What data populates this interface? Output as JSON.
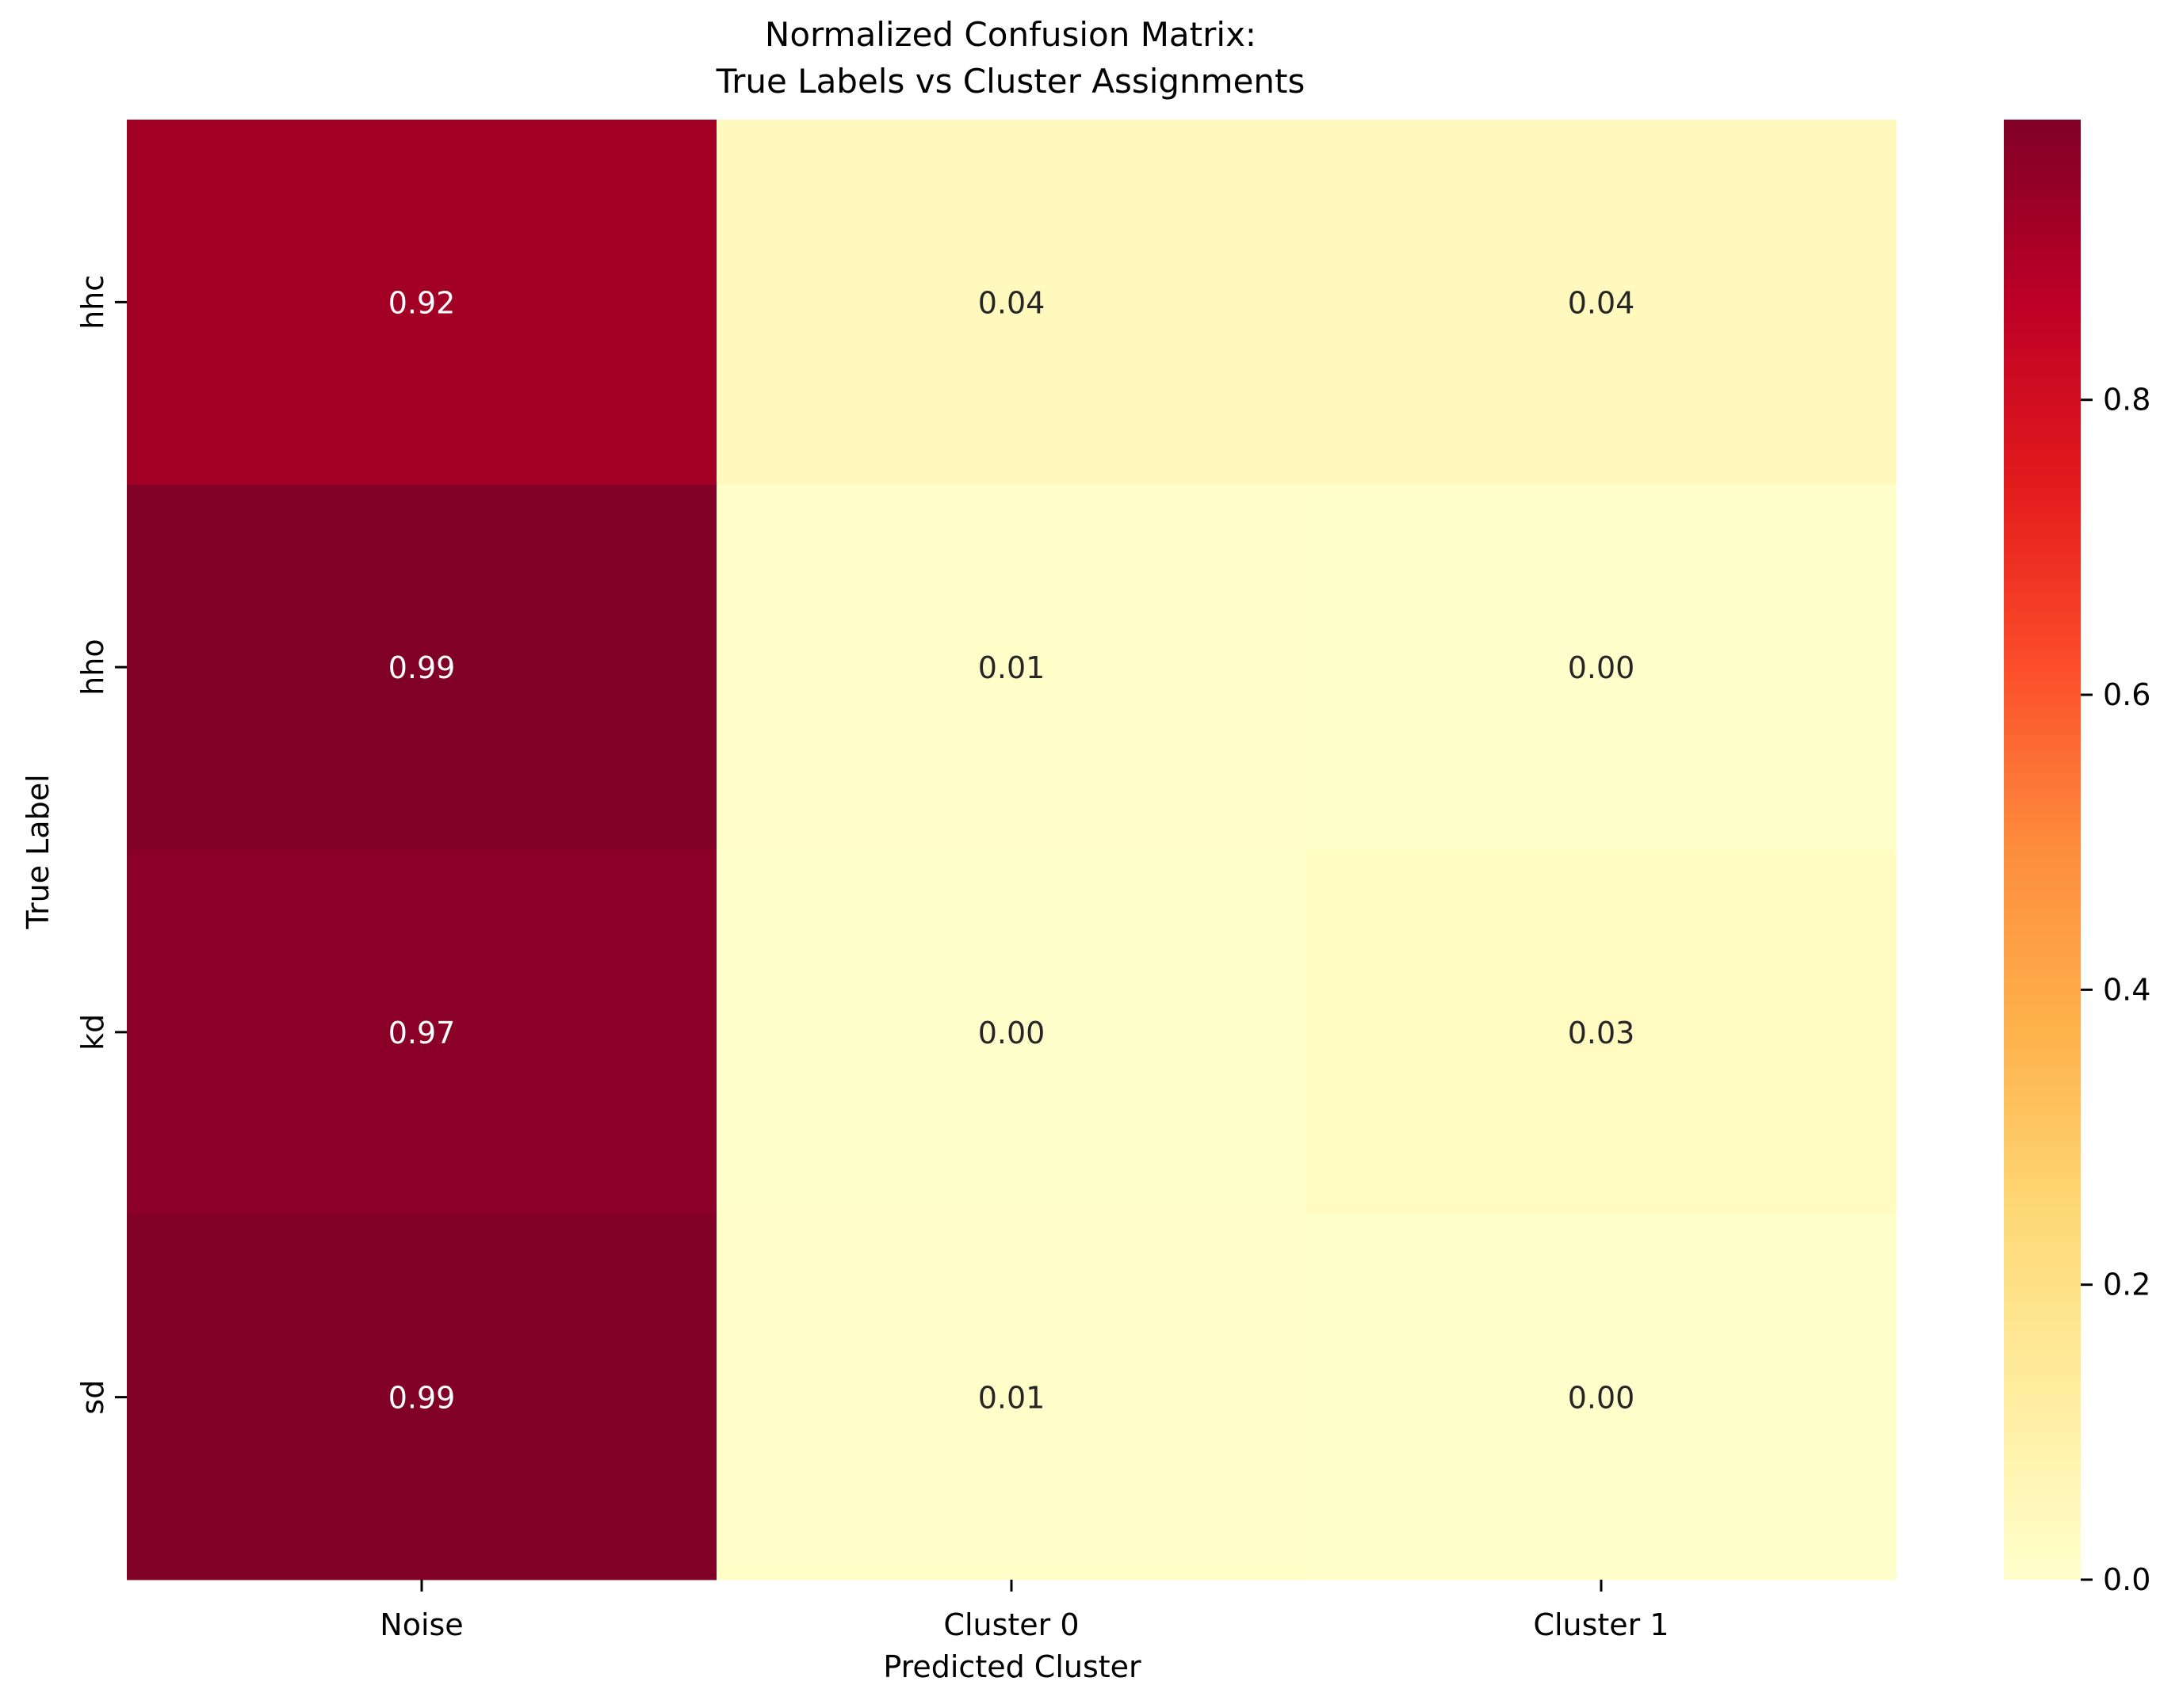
{
  "chart_data": {
    "type": "heatmap",
    "title_lines": [
      "Normalized Confusion Matrix:",
      "True Labels vs Cluster Assignments"
    ],
    "xlabel": "Predicted Cluster",
    "ylabel": "True Label",
    "x_categories": [
      "Noise",
      "Cluster 0",
      "Cluster 1"
    ],
    "y_categories": [
      "hhc",
      "hho",
      "kd",
      "sd"
    ],
    "values": [
      [
        0.92,
        0.04,
        0.04
      ],
      [
        0.99,
        0.01,
        0.0
      ],
      [
        0.97,
        0.0,
        0.03
      ],
      [
        0.99,
        0.01,
        0.0
      ]
    ],
    "value_format": "2 decimals",
    "colormap": "YlOrRd",
    "colorbar": {
      "min": 0.0,
      "max": 0.99,
      "ticks": [
        0.0,
        0.2,
        0.4,
        0.6,
        0.8
      ],
      "tick_labels": [
        "0.0",
        "0.2",
        "0.4",
        "0.6",
        "0.8"
      ]
    },
    "annotation_colors": {
      "dark_cell_text": "#ffffff",
      "light_cell_text": "#262626"
    },
    "grid": false
  }
}
